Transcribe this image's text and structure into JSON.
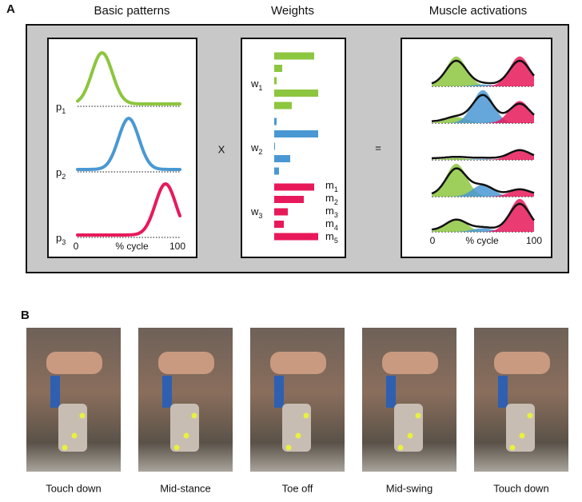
{
  "panel_a": {
    "label": "A",
    "headings": [
      "Basic patterns",
      "Weights",
      "Muscle activations"
    ],
    "times": "X",
    "equals": "=",
    "patterns": [
      {
        "letter": "p",
        "sub": "1",
        "color": "#8dc63f"
      },
      {
        "letter": "p",
        "sub": "2",
        "color": "#4a98d3"
      },
      {
        "letter": "p",
        "sub": "3",
        "color": "#e8195a"
      }
    ],
    "weights": [
      {
        "letter": "w",
        "sub": "1",
        "values": [
          50,
          10,
          3,
          55,
          22
        ]
      },
      {
        "letter": "w",
        "sub": "2",
        "values": [
          3,
          55,
          1,
          20,
          6
        ]
      },
      {
        "letter": "w",
        "sub": "3",
        "values": [
          50,
          37,
          17,
          12,
          55
        ]
      }
    ],
    "muscles": [
      {
        "letter": "m",
        "sub": "1"
      },
      {
        "letter": "m",
        "sub": "2"
      },
      {
        "letter": "m",
        "sub": "3"
      },
      {
        "letter": "m",
        "sub": "4"
      },
      {
        "letter": "m",
        "sub": "5"
      }
    ],
    "axis": {
      "start": "0",
      "label": "% cycle",
      "end": "100"
    }
  },
  "panel_b": {
    "label": "B",
    "captions": [
      "Touch down",
      "Mid-stance",
      "Toe off",
      "Mid-swing",
      "Touch down"
    ]
  }
}
